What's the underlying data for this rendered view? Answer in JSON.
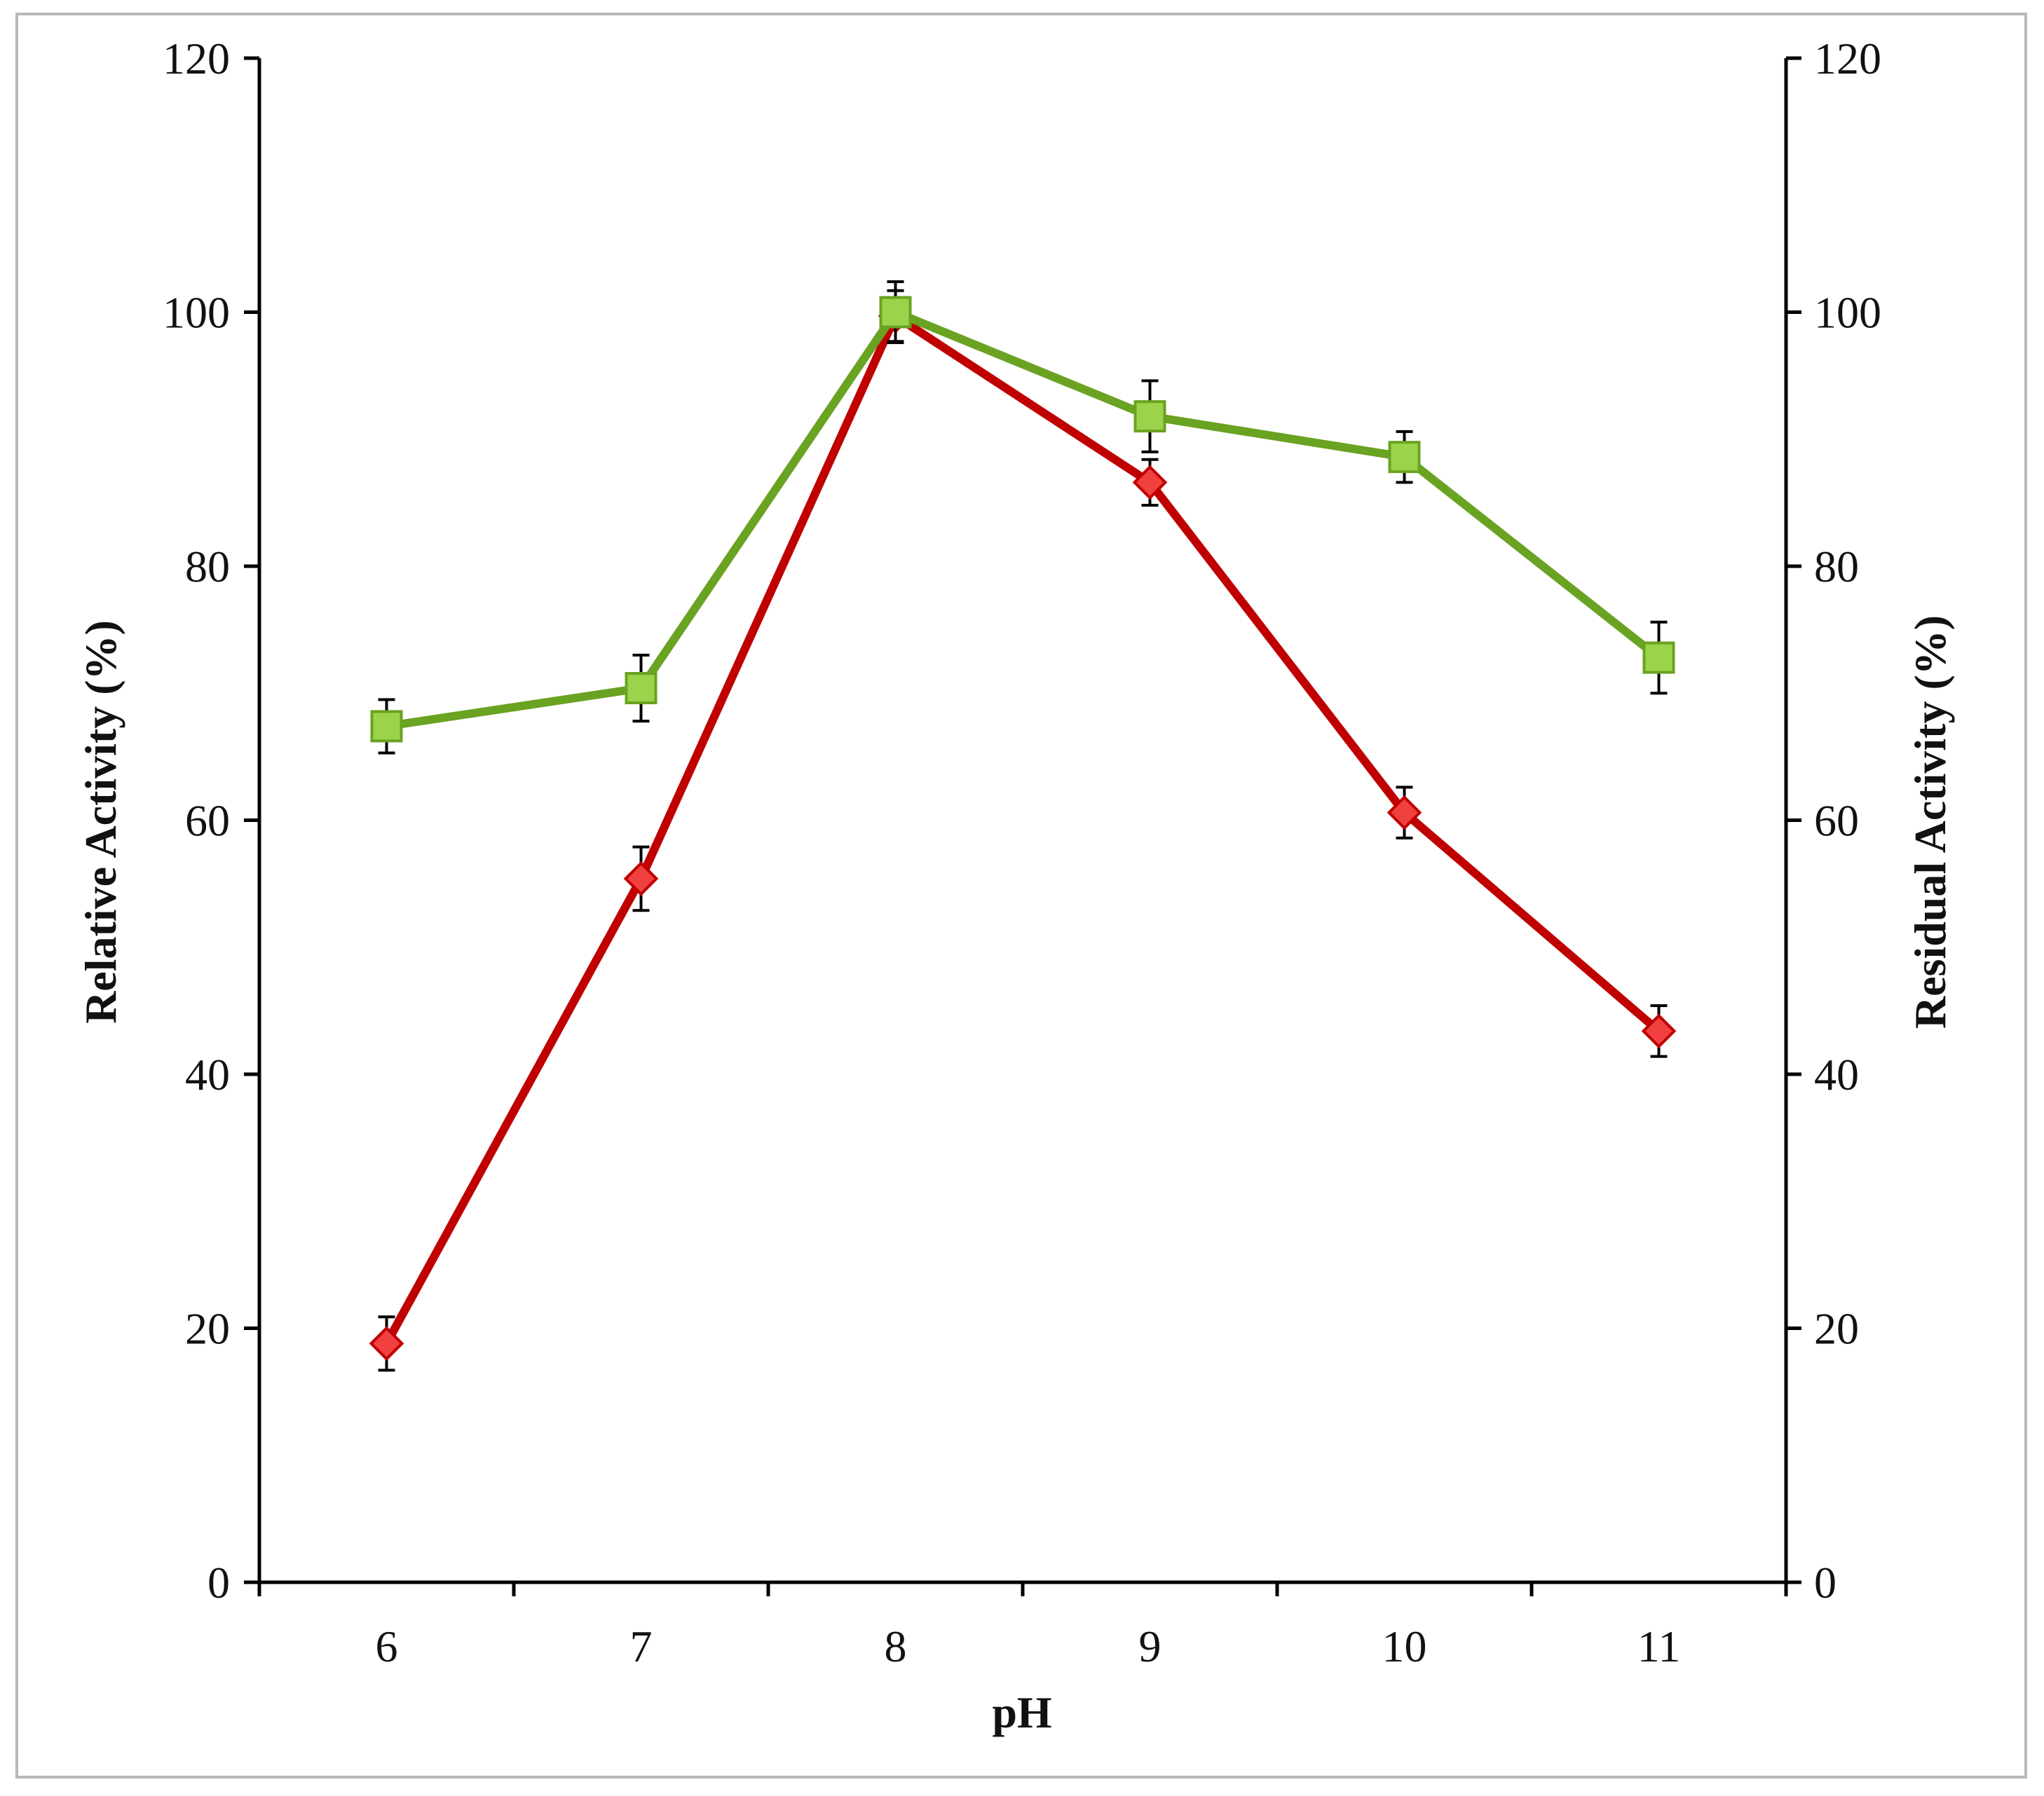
{
  "chart_data": {
    "type": "line",
    "title": "",
    "xlabel": "pH",
    "ylabel": "Relative Activity (%)",
    "y2label": "Residual Activity (%)",
    "x": [
      6,
      7,
      8,
      9,
      10,
      11
    ],
    "x_tick_labels": [
      "6",
      "7",
      "8",
      "9",
      "10",
      "11"
    ],
    "ylim": [
      0,
      120
    ],
    "y2lim": [
      0,
      120
    ],
    "y_ticks": [
      0,
      20,
      40,
      60,
      80,
      100,
      120
    ],
    "y_tick_labels": [
      "0",
      "20",
      "40",
      "60",
      "80",
      "100",
      "120"
    ],
    "y2_ticks": [
      0,
      20,
      40,
      60,
      80,
      100,
      120
    ],
    "y2_tick_labels": [
      "0",
      "20",
      "40",
      "60",
      "80",
      "100",
      "120"
    ],
    "grid": false,
    "legend": "none",
    "series": [
      {
        "axis": "left",
        "marker": "diamond",
        "color": "#c00000",
        "marker_fill": "#f04040",
        "values": [
          18.8,
          55.4,
          99.7,
          86.6,
          60.6,
          43.4
        ],
        "errors": [
          2.1,
          2.5,
          2.0,
          1.8,
          2.0,
          2.0
        ]
      },
      {
        "axis": "right",
        "marker": "square",
        "color": "#6aa222",
        "marker_fill": "#9bd44a",
        "values": [
          67.4,
          70.4,
          100.0,
          91.8,
          88.6,
          72.8
        ],
        "errors": [
          2.1,
          2.6,
          2.4,
          2.8,
          2.0,
          2.8
        ]
      }
    ]
  }
}
